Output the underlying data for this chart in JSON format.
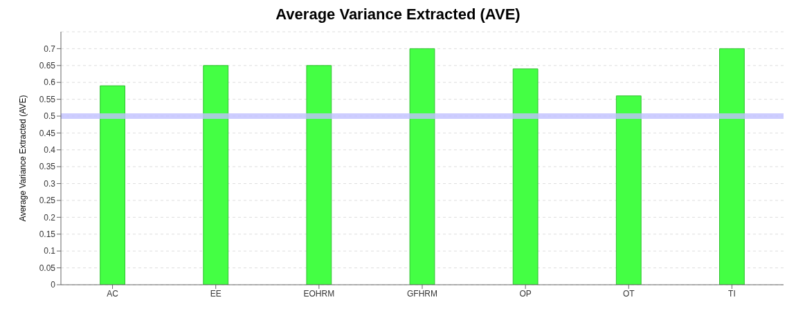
{
  "chart_data": {
    "type": "bar",
    "title": "Average Variance Extracted (AVE)",
    "ylabel": "Average Variance Extracted (AVE)",
    "categories": [
      "AC",
      "EE",
      "EOHRM",
      "GFHRM",
      "OP",
      "OT",
      "TI"
    ],
    "values": [
      0.59,
      0.65,
      0.65,
      0.7,
      0.64,
      0.56,
      0.7
    ],
    "color": "#44ff44",
    "ylim": [
      0,
      0.75
    ],
    "yticks": [
      0,
      0.05,
      0.1,
      0.15,
      0.2,
      0.25,
      0.3,
      0.35,
      0.4,
      0.45,
      0.5,
      0.55,
      0.6,
      0.65,
      0.7
    ],
    "grid": "y",
    "ref_lines": [
      {
        "axis": "y",
        "value": 0.5,
        "color": "#c0c0ff"
      }
    ]
  }
}
